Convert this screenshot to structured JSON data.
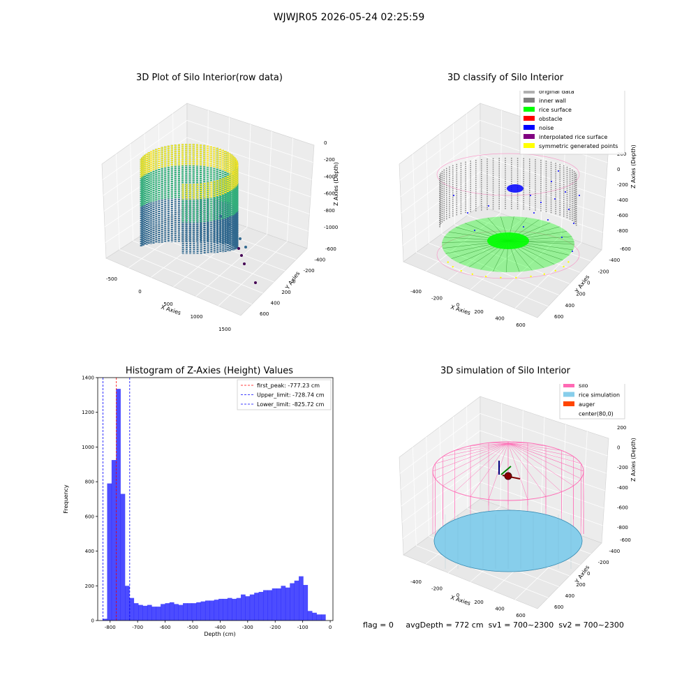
{
  "figure": {
    "suptitle": "WJWJR05 2026-05-24 02:25:59",
    "footer": {
      "flag": "flag = 0",
      "avg_depth": "avgDepth = 772 cm",
      "sv1": "sv1 = 700~2300",
      "sv2": "sv2 = 700~2300"
    }
  },
  "panels": {
    "raw": {
      "title": "3D Plot of Silo Interior(row data)",
      "xlabel": "X Axies",
      "ylabel": "Y Axies",
      "zlabel": "Z Axies (Depth)",
      "xticks": [
        "-500",
        "0",
        "500",
        "1000",
        "1500"
      ],
      "yticks": [
        "-600",
        "-400",
        "-200",
        "0",
        "200",
        "400",
        "600"
      ],
      "zticks": [
        "0",
        "-200",
        "-400",
        "-600",
        "-800",
        "-1000"
      ],
      "colormap": [
        "#440154",
        "#31688e",
        "#35b779",
        "#fde725"
      ]
    },
    "classify": {
      "title": "3D classify of Silo Interior",
      "xlabel": "X Axies",
      "ylabel": "Y Axies",
      "zlabel": "Z Axies (Depth)",
      "xticks": [
        "-400",
        "-200",
        "0",
        "200",
        "400",
        "600"
      ],
      "yticks": [
        "-600",
        "-400",
        "-200",
        "0",
        "200",
        "400",
        "600"
      ],
      "zticks": [
        "200",
        "0",
        "-200",
        "-400",
        "-600",
        "-800"
      ],
      "legend": [
        {
          "label": "original data",
          "color": "#b0b0b0"
        },
        {
          "label": "inner wall",
          "color": "#808080"
        },
        {
          "label": "rice surface",
          "color": "#00ff00"
        },
        {
          "label": "obstacle",
          "color": "#ff0000"
        },
        {
          "label": "noise",
          "color": "#0000ff"
        },
        {
          "label": "interpolated rice surface",
          "color": "#800080"
        },
        {
          "label": "symmetric generated points",
          "color": "#ffff00"
        }
      ]
    },
    "simulation": {
      "title": "3D simulation of Silo Interior",
      "xlabel": "X Axies",
      "ylabel": "Y Axies",
      "zlabel": "Z Axies (Depth)",
      "xticks": [
        "-400",
        "-200",
        "0",
        "200",
        "400",
        "600"
      ],
      "yticks": [
        "-600",
        "-400",
        "-200",
        "0",
        "200",
        "400",
        "600"
      ],
      "zticks": [
        "200",
        "0",
        "-200",
        "-400",
        "-600",
        "-800"
      ],
      "legend": [
        {
          "label": "silo",
          "color": "#ff69b4"
        },
        {
          "label": "rice simulation",
          "color": "#87ceeb"
        },
        {
          "label": "auger",
          "color": "#ff4500"
        },
        {
          "label": "center(80,0)",
          "color": ""
        }
      ]
    }
  },
  "chart_data": {
    "type": "bar",
    "title": "Histogram of Z-Axies (Height) Values",
    "xlabel": "Depth (cm)",
    "ylabel": "Frequency",
    "xlim": [
      -845,
      10
    ],
    "ylim": [
      0,
      1400
    ],
    "xticks": [
      -800,
      -700,
      -600,
      -500,
      -400,
      -300,
      -200,
      -100,
      0
    ],
    "yticks": [
      0,
      200,
      400,
      600,
      800,
      1000,
      1200,
      1400
    ],
    "bar_color": "#0000ff",
    "bin_width": 16.2,
    "bin_start": -827,
    "values": [
      10,
      790,
      925,
      1335,
      730,
      200,
      130,
      100,
      90,
      85,
      90,
      80,
      80,
      95,
      100,
      105,
      95,
      90,
      100,
      100,
      100,
      105,
      110,
      115,
      115,
      120,
      125,
      125,
      130,
      125,
      130,
      150,
      140,
      150,
      160,
      165,
      175,
      175,
      185,
      185,
      200,
      190,
      215,
      230,
      255,
      205,
      55,
      45,
      35,
      35
    ],
    "vlines": [
      {
        "label": "first_peak: -777.23 cm",
        "x": -777.23,
        "color": "#ff0000"
      },
      {
        "label": "Upper_limit: -728.74 cm",
        "x": -728.74,
        "color": "#0000ff"
      },
      {
        "label": "Lower_limit: -825.72 cm",
        "x": -825.72,
        "color": "#0000ff"
      }
    ]
  }
}
